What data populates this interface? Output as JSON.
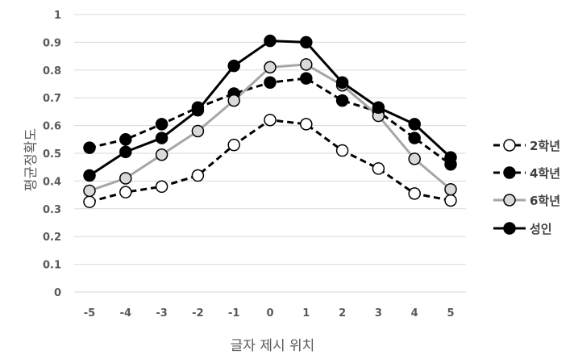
{
  "chart_data": {
    "type": "line",
    "title": "",
    "xlabel": "글자 제시 위치",
    "ylabel": "평균정확도",
    "x": [
      -5,
      -4,
      -3,
      -2,
      -1,
      0,
      1,
      2,
      3,
      4,
      5
    ],
    "x_tick_labels": [
      "-5",
      "-4",
      "-3",
      "-2",
      "-1",
      "0",
      "1",
      "2",
      "3",
      "4",
      "5"
    ],
    "ylim": [
      0,
      1
    ],
    "y_ticks": [
      0,
      0.1,
      0.2,
      0.3,
      0.4,
      0.5,
      0.6,
      0.7,
      0.8,
      0.9,
      1
    ],
    "y_tick_labels": [
      "0",
      "0.1",
      "0.2",
      "0.3",
      "0.4",
      "0.5",
      "0.6",
      "0.7",
      "0.8",
      "0.9",
      "1"
    ],
    "grid": true,
    "legend_position": "right",
    "series": [
      {
        "name": "2학년",
        "values": [
          0.325,
          0.36,
          0.38,
          0.42,
          0.53,
          0.62,
          0.605,
          0.51,
          0.445,
          0.355,
          0.33
        ],
        "line_color": "#000000",
        "dashed": true,
        "marker_fill": "#ffffff",
        "marker_stroke": "#000000"
      },
      {
        "name": "4학년",
        "values": [
          0.52,
          0.55,
          0.605,
          0.665,
          0.715,
          0.755,
          0.77,
          0.69,
          0.65,
          0.555,
          0.46
        ],
        "line_color": "#000000",
        "dashed": true,
        "marker_fill": "#000000",
        "marker_stroke": "#000000"
      },
      {
        "name": "6학년",
        "values": [
          0.365,
          0.41,
          0.495,
          0.58,
          0.69,
          0.81,
          0.82,
          0.745,
          0.635,
          0.48,
          0.37
        ],
        "line_color": "#a6a6a6",
        "dashed": false,
        "marker_fill": "#d9d9d9",
        "marker_stroke": "#000000"
      },
      {
        "name": "성인",
        "values": [
          0.42,
          0.505,
          0.555,
          0.655,
          0.815,
          0.905,
          0.9,
          0.755,
          0.665,
          0.605,
          0.485
        ],
        "line_color": "#000000",
        "dashed": false,
        "marker_fill": "#000000",
        "marker_stroke": "#000000"
      }
    ]
  }
}
